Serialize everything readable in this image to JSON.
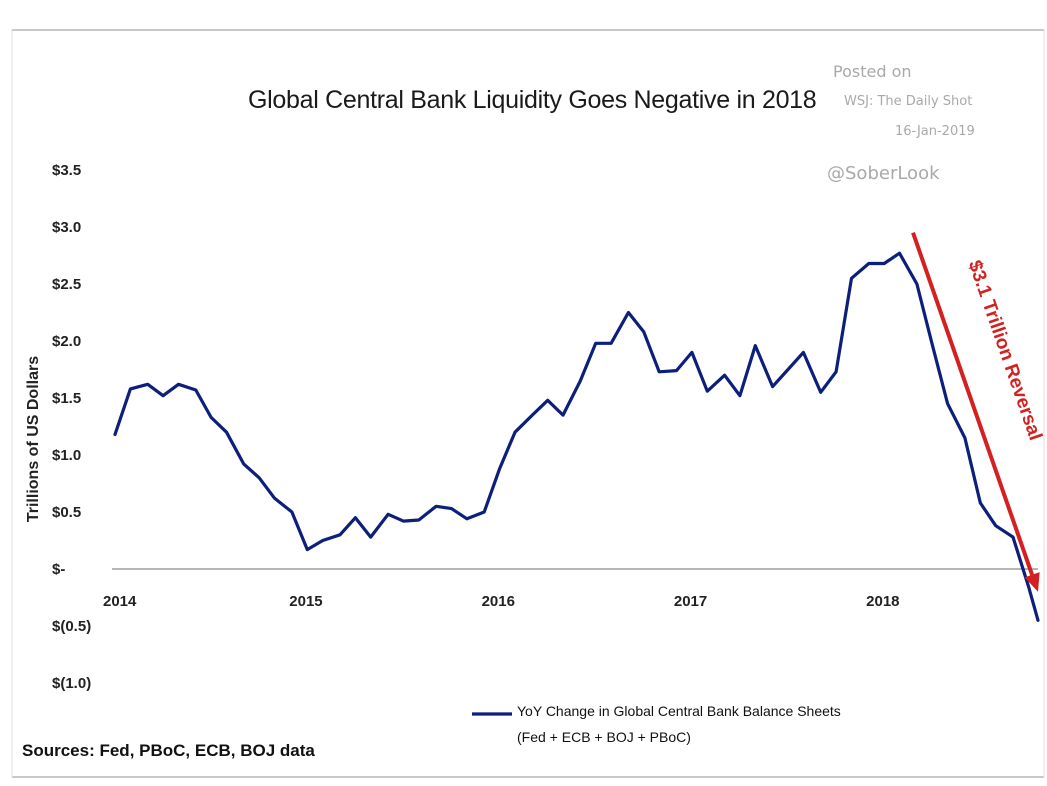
{
  "chart_data": {
    "type": "line",
    "title": "Global Central Bank Liquidity Goes Negative in 2018",
    "ylabel": "Trillions of US Dollars",
    "xlabel": "",
    "x_tick_labels": [
      "2014",
      "2015",
      "2016",
      "2017",
      "2018"
    ],
    "y_tick_labels": [
      "$3.5",
      "$3.0",
      "$2.5",
      "$2.0",
      "$1.5",
      "$1.0",
      "$0.5",
      "$-",
      "$(0.5)",
      "$(1.0)"
    ],
    "ylim": [
      -1.0,
      3.5
    ],
    "xlim": [
      2014.0,
      2018.8
    ],
    "grid": false,
    "legend_position": "bottom-right",
    "series": [
      {
        "name": "YoY Change in Global Central Bank Balance Sheets",
        "name_line2": "(Fed + ECB + BOJ + PBoC)",
        "color": "#0c1f7a",
        "x": [
          2014.0,
          2014.08,
          2014.17,
          2014.25,
          2014.33,
          2014.42,
          2014.5,
          2014.58,
          2014.67,
          2014.75,
          2014.83,
          2014.92,
          2015.0,
          2015.08,
          2015.17,
          2015.25,
          2015.33,
          2015.42,
          2015.5,
          2015.58,
          2015.67,
          2015.75,
          2015.83,
          2015.92,
          2016.0,
          2016.08,
          2016.17,
          2016.25,
          2016.33,
          2016.42,
          2016.5,
          2016.58,
          2016.67,
          2016.75,
          2016.83,
          2016.92,
          2017.0,
          2017.08,
          2017.17,
          2017.25,
          2017.33,
          2017.42,
          2017.5,
          2017.58,
          2017.67,
          2017.75,
          2017.83,
          2017.92,
          2018.0,
          2018.08,
          2018.17,
          2018.25,
          2018.33,
          2018.42,
          2018.5,
          2018.58,
          2018.67,
          2018.75,
          2018.8
        ],
        "values": [
          1.18,
          1.58,
          1.62,
          1.52,
          1.62,
          1.57,
          1.33,
          1.2,
          0.92,
          0.8,
          0.62,
          0.5,
          0.17,
          0.25,
          0.3,
          0.45,
          0.28,
          0.48,
          0.42,
          0.43,
          0.55,
          0.53,
          0.44,
          0.5,
          0.88,
          1.2,
          1.35,
          1.48,
          1.35,
          1.65,
          1.98,
          1.98,
          2.25,
          2.08,
          1.73,
          1.74,
          1.9,
          1.56,
          1.7,
          1.52,
          1.96,
          1.6,
          1.75,
          1.9,
          1.55,
          1.73,
          2.55,
          2.68,
          2.68,
          2.77,
          2.5,
          1.97,
          1.45,
          1.15,
          0.58,
          0.38,
          0.28,
          -0.15,
          -0.45
        ]
      }
    ],
    "annotations": [
      {
        "text": "$3.1 Trillion Reversal",
        "color": "#d42020",
        "type": "arrow",
        "from": [
          2018.15,
          2.95
        ],
        "to": [
          2018.8,
          -0.2
        ]
      }
    ]
  },
  "watermark": {
    "line1": "Posted on",
    "line2": "WSJ: The Daily Shot",
    "line3": "16-Jan-2019",
    "line4": "@SoberLook"
  },
  "footer": {
    "sources": "Sources: Fed, PBoC, ECB, BOJ data"
  },
  "colors": {
    "series_line": "#0c1f7a",
    "annotation_arrow": "#d42020",
    "axis_line": "#8c8c8c",
    "frame_border": "#d0d0d0"
  }
}
